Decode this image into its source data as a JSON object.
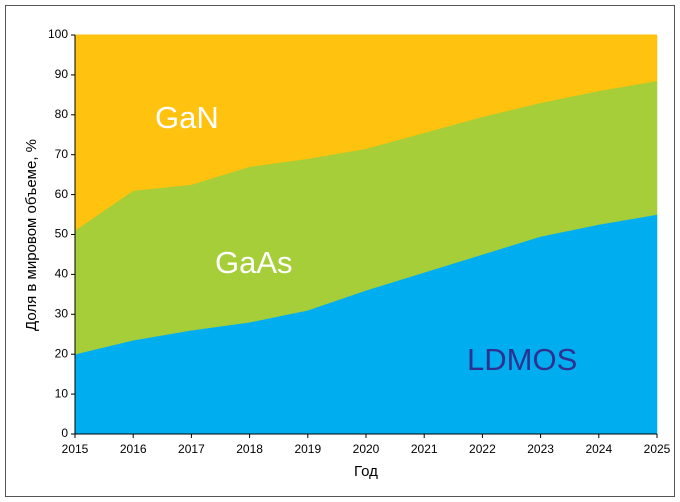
{
  "chart_data": {
    "type": "stacked_area",
    "x": [
      2015,
      2016,
      2017,
      2018,
      2019,
      2020,
      2021,
      2022,
      2023,
      2024,
      2025
    ],
    "series": [
      {
        "name": "GaN",
        "color": "#00aeef",
        "label_color": "#ffffff",
        "values": [
          20,
          23.5,
          26,
          28,
          31,
          36,
          40.5,
          45,
          49.5,
          52.5,
          55
        ]
      },
      {
        "name": "GaAs",
        "color": "#a6ce39",
        "label_color": "#ffffff",
        "values": [
          31,
          37.5,
          36.5,
          39,
          38,
          35.5,
          35,
          34.5,
          33.5,
          33.5,
          33.5
        ]
      },
      {
        "name": "LDMOS",
        "color": "#ffc20e",
        "label_color": "#2e3192",
        "values": [
          49,
          39,
          37.5,
          33,
          31,
          28.5,
          24.5,
          20.5,
          17,
          14,
          11.5
        ]
      }
    ],
    "xlabel": "Год",
    "ylabel": "Доля в мировом объеме, %",
    "xlim": [
      2015,
      2025
    ],
    "xticks": [
      2015,
      2016,
      2017,
      2018,
      2019,
      2020,
      2021,
      2022,
      2023,
      2024,
      2025
    ],
    "ylim": [
      0,
      100
    ],
    "yticks": [
      0,
      10,
      20,
      30,
      40,
      50,
      60,
      70,
      80,
      90,
      100
    ]
  }
}
